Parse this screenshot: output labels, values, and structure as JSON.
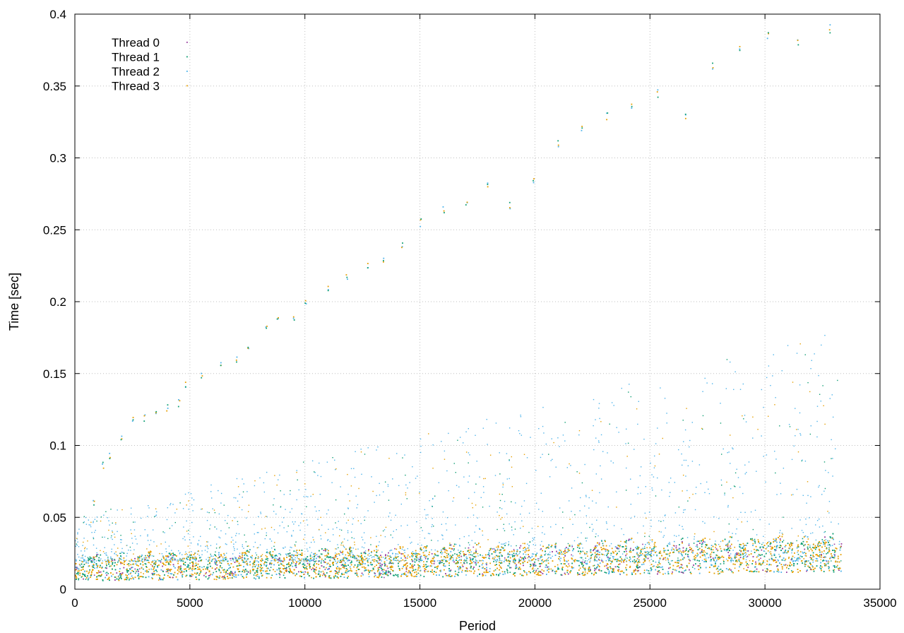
{
  "chart_data": {
    "type": "scatter",
    "xlabel": "Period",
    "ylabel": "Time [sec]",
    "xlim": [
      0,
      35000
    ],
    "ylim": [
      0,
      0.4
    ],
    "x_ticks": [
      0,
      5000,
      10000,
      15000,
      20000,
      25000,
      30000,
      35000
    ],
    "y_ticks": [
      0,
      0.05,
      0.1,
      0.15,
      0.2,
      0.25,
      0.3,
      0.35,
      0.4
    ],
    "x_tick_labels": [
      "0",
      "5000",
      "10000",
      "15000",
      "20000",
      "25000",
      "30000",
      "35000"
    ],
    "y_tick_labels": [
      "0",
      "0.05",
      "0.1",
      "0.15",
      "0.2",
      "0.25",
      "0.3",
      "0.35",
      "0.4"
    ],
    "grid": true,
    "legend_position": "top-left",
    "series": [
      {
        "name": "Thread 0",
        "color": "#9a3fa0",
        "marker": "dot"
      },
      {
        "name": "Thread 1",
        "color": "#0f9e73",
        "marker": "dot"
      },
      {
        "name": "Thread 2",
        "color": "#4db3ea",
        "marker": "dot"
      },
      {
        "name": "Thread 3",
        "color": "#e69f00",
        "marker": "dot"
      }
    ],
    "x_max_data": 33300,
    "dense_band": {
      "description_values": {
        "start_low": 0.006,
        "start_high": 0.018,
        "end_low": 0.012,
        "end_high": 0.032
      },
      "sawtooth_period": 1100
    },
    "outlier_trend": [
      {
        "x": 800,
        "y": 0.06
      },
      {
        "x": 1200,
        "y": 0.087
      },
      {
        "x": 1500,
        "y": 0.092
      },
      {
        "x": 2000,
        "y": 0.105
      },
      {
        "x": 2500,
        "y": 0.118
      },
      {
        "x": 3000,
        "y": 0.12
      },
      {
        "x": 3500,
        "y": 0.125
      },
      {
        "x": 4000,
        "y": 0.127
      },
      {
        "x": 4500,
        "y": 0.13
      },
      {
        "x": 4800,
        "y": 0.142
      },
      {
        "x": 5500,
        "y": 0.148
      },
      {
        "x": 6300,
        "y": 0.155
      },
      {
        "x": 7000,
        "y": 0.16
      },
      {
        "x": 7500,
        "y": 0.17
      },
      {
        "x": 8300,
        "y": 0.183
      },
      {
        "x": 8800,
        "y": 0.19
      },
      {
        "x": 9500,
        "y": 0.19
      },
      {
        "x": 10000,
        "y": 0.2
      },
      {
        "x": 11000,
        "y": 0.21
      },
      {
        "x": 11800,
        "y": 0.218
      },
      {
        "x": 12700,
        "y": 0.225
      },
      {
        "x": 13400,
        "y": 0.23
      },
      {
        "x": 14200,
        "y": 0.24
      },
      {
        "x": 15000,
        "y": 0.255
      },
      {
        "x": 16000,
        "y": 0.265
      },
      {
        "x": 17000,
        "y": 0.27
      },
      {
        "x": 17900,
        "y": 0.28
      },
      {
        "x": 18900,
        "y": 0.268
      },
      {
        "x": 19900,
        "y": 0.285
      },
      {
        "x": 21000,
        "y": 0.31
      },
      {
        "x": 22000,
        "y": 0.32
      },
      {
        "x": 23100,
        "y": 0.33
      },
      {
        "x": 24200,
        "y": 0.335
      },
      {
        "x": 25300,
        "y": 0.345
      },
      {
        "x": 26500,
        "y": 0.33
      },
      {
        "x": 27700,
        "y": 0.365
      },
      {
        "x": 28900,
        "y": 0.375
      },
      {
        "x": 30100,
        "y": 0.385
      },
      {
        "x": 31400,
        "y": 0.38
      },
      {
        "x": 32800,
        "y": 0.39
      }
    ]
  }
}
